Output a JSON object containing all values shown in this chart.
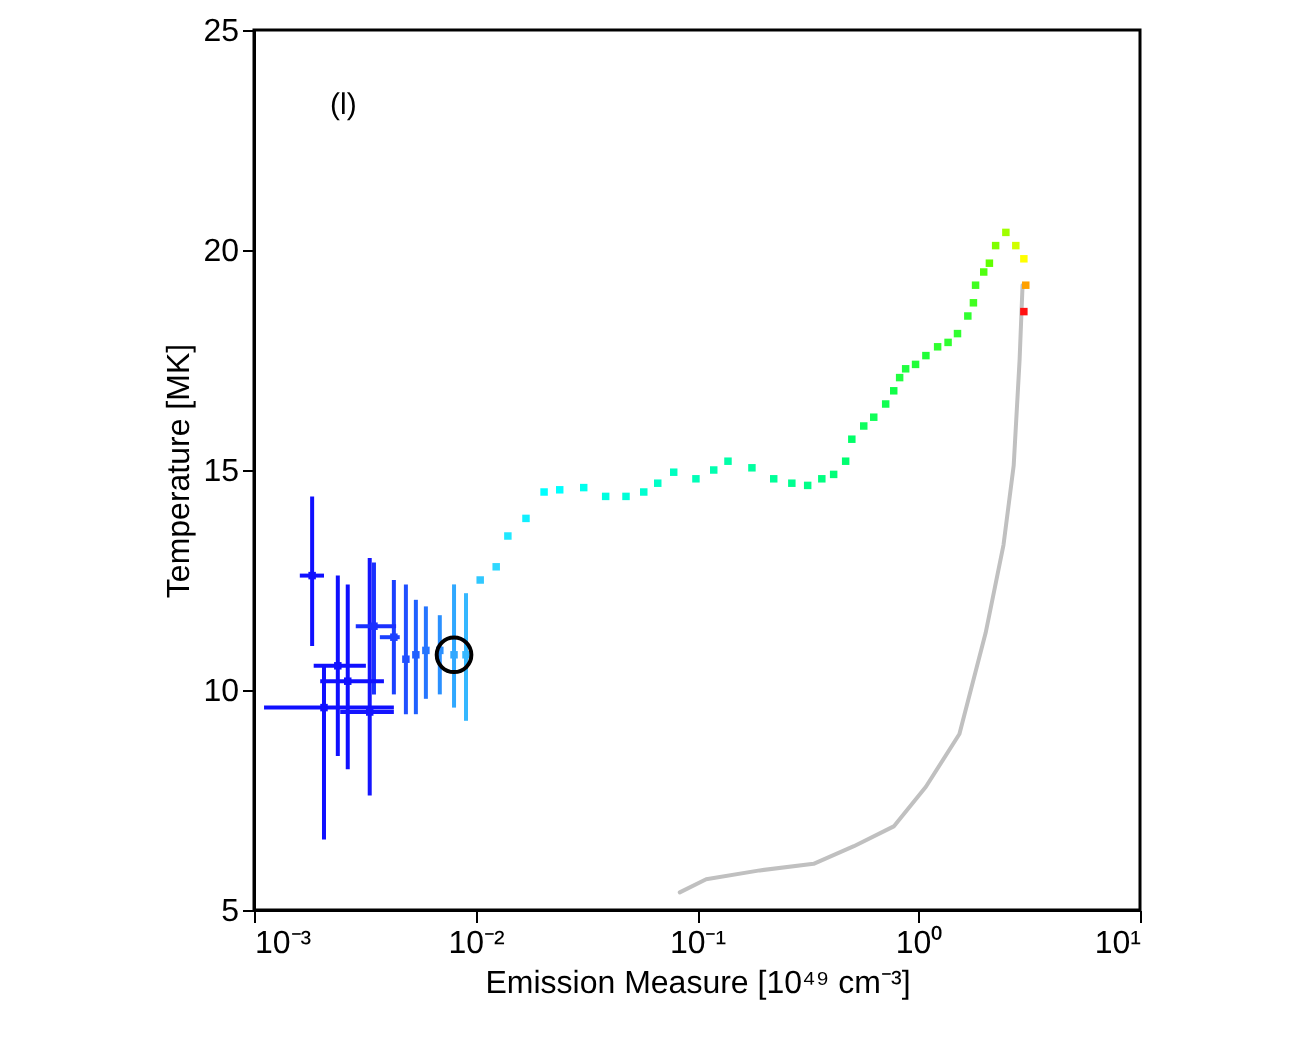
{
  "chart_data": {
    "type": "scatter",
    "xlabel": "Emission Measure [10⁴⁹ cm⁻³]",
    "ylabel": "Temperature [MK]",
    "annotations": [
      "(l)"
    ],
    "log": "x",
    "grid": false,
    "xlim": [
      0.001,
      10
    ],
    "xticks": [
      {
        "value": 0.001,
        "label": "10⁻³"
      },
      {
        "value": 0.01,
        "label": "10⁻²"
      },
      {
        "value": 0.1,
        "label": "10⁻¹"
      },
      {
        "value": 1,
        "label": "10⁰"
      },
      {
        "value": 10,
        "label": "10¹"
      }
    ],
    "ylim": [
      5,
      25
    ],
    "yticks": [
      5,
      10,
      15,
      20,
      25
    ],
    "series": [
      {
        "type": "line",
        "color": "#c0c0c0",
        "marker": "none",
        "line_style": "solid",
        "x": [
          2.95,
          2.86,
          2.69,
          2.42,
          2.01,
          1.53,
          1.08,
          0.773,
          0.511,
          0.336,
          0.192,
          0.11,
          0.0836
        ],
        "values": [
          19.2,
          17.5,
          15.1,
          13.3,
          11.3,
          9.0,
          7.8,
          6.9,
          6.45,
          6.05,
          5.9,
          5.7,
          5.4
        ]
      },
      {
        "marker": "square",
        "x": [
          0.00183,
          0.00207,
          0.00239,
          0.00265,
          0.00333,
          0.00348,
          0.00428,
          0.00485,
          0.00538,
          0.00597,
          0.0069,
          0.008,
          0.00906
        ],
        "values": [
          12.6,
          9.6,
          10.55,
          10.2,
          9.5,
          11.45,
          11.2,
          10.7,
          10.8,
          10.9,
          10.9,
          10.8,
          10.8
        ],
        "colors": [
          "#1010ff",
          "#1010ff",
          "#1010ff",
          "#1010ff",
          "#1515ff",
          "#1a30ff",
          "#1a40ff",
          "#2050ff",
          "#2060ff",
          "#2575ff",
          "#2a90ff",
          "#30a8ff",
          "#35b8ff"
        ],
        "errors": [
          [
            11.0,
            14.4
          ],
          [
            6.6,
            10.55
          ],
          [
            8.5,
            12.6
          ],
          [
            8.2,
            12.4
          ],
          [
            7.6,
            13.0
          ],
          [
            9.9,
            12.9
          ],
          [
            9.9,
            12.5
          ],
          [
            9.45,
            12.4
          ],
          [
            9.45,
            12.05
          ],
          [
            9.8,
            11.9
          ],
          [
            9.9,
            11.7
          ],
          [
            9.6,
            12.4
          ],
          [
            9.3,
            12.2
          ]
        ],
        "xerrors": [
          [
            0.00161,
            0.00207
          ],
          [
            0.00111,
            0.00428
          ],
          [
            0.00186,
            0.0032
          ],
          [
            0.00199,
            0.00386
          ],
          [
            0.00245,
            0.00428
          ],
          [
            0.00288,
            0.00438
          ],
          [
            0.0037,
            0.00455
          ],
          null,
          null,
          null,
          null,
          null,
          null
        ]
      },
      {
        "marker": "square",
        "x": [
          0.0105,
          0.0124,
          0.014,
          0.0169,
          0.0204,
          0.024,
          0.0308,
          0.0387,
          0.0478,
          0.0575,
          0.0665,
          0.0785,
          0.0989,
          0.119,
          0.138,
          0.177,
          0.222,
          0.268,
          0.316,
          0.366,
          0.414,
          0.469,
          0.5,
          0.566,
          0.628,
          0.711,
          0.773,
          0.822,
          0.875,
          0.97,
          1.08,
          1.22,
          1.36,
          1.5,
          1.67,
          1.77,
          1.81,
          1.97,
          2.09,
          2.23,
          2.48,
          2.75,
          2.99,
          3.05,
          2.99
        ],
        "values": [
          12.5,
          12.8,
          13.5,
          13.9,
          14.5,
          14.55,
          14.6,
          14.4,
          14.4,
          14.5,
          14.7,
          14.95,
          14.8,
          15.0,
          15.2,
          15.05,
          14.8,
          14.7,
          14.65,
          14.8,
          14.9,
          15.2,
          15.7,
          16.0,
          16.2,
          16.5,
          16.8,
          17.1,
          17.3,
          17.4,
          17.6,
          17.8,
          17.9,
          18.1,
          18.5,
          18.8,
          19.2,
          19.5,
          19.7,
          20.1,
          20.4,
          20.1,
          19.8,
          19.2,
          18.6
        ],
        "colors": [
          "#30c8ff",
          "#30d8ff",
          "#20e8ff",
          "#10f0ff",
          "#00ffff",
          "#00ffff",
          "#00ffee",
          "#00ffe0",
          "#00ffd8",
          "#00ffd0",
          "#00ffc8",
          "#00ffc0",
          "#00ffb8",
          "#00ffb0",
          "#00ffa8",
          "#00ffa0",
          "#00ff98",
          "#00ff90",
          "#00ff88",
          "#00ff80",
          "#00ff78",
          "#00ff70",
          "#00ff68",
          "#10ff60",
          "#10ff58",
          "#10ff50",
          "#10ff48",
          "#20ff40",
          "#20ff40",
          "#20ff38",
          "#20ff38",
          "#30ff30",
          "#30ff30",
          "#30ff30",
          "#30ff30",
          "#40ff20",
          "#40ff20",
          "#50ff10",
          "#60ff00",
          "#80ff00",
          "#a0ff00",
          "#d0ff00",
          "#ffff00",
          "#ffa000",
          "#ff1010"
        ]
      },
      {
        "marker": "circle",
        "color": "#000000",
        "x": [
          0.008
        ],
        "values": [
          10.8
        ]
      }
    ]
  }
}
